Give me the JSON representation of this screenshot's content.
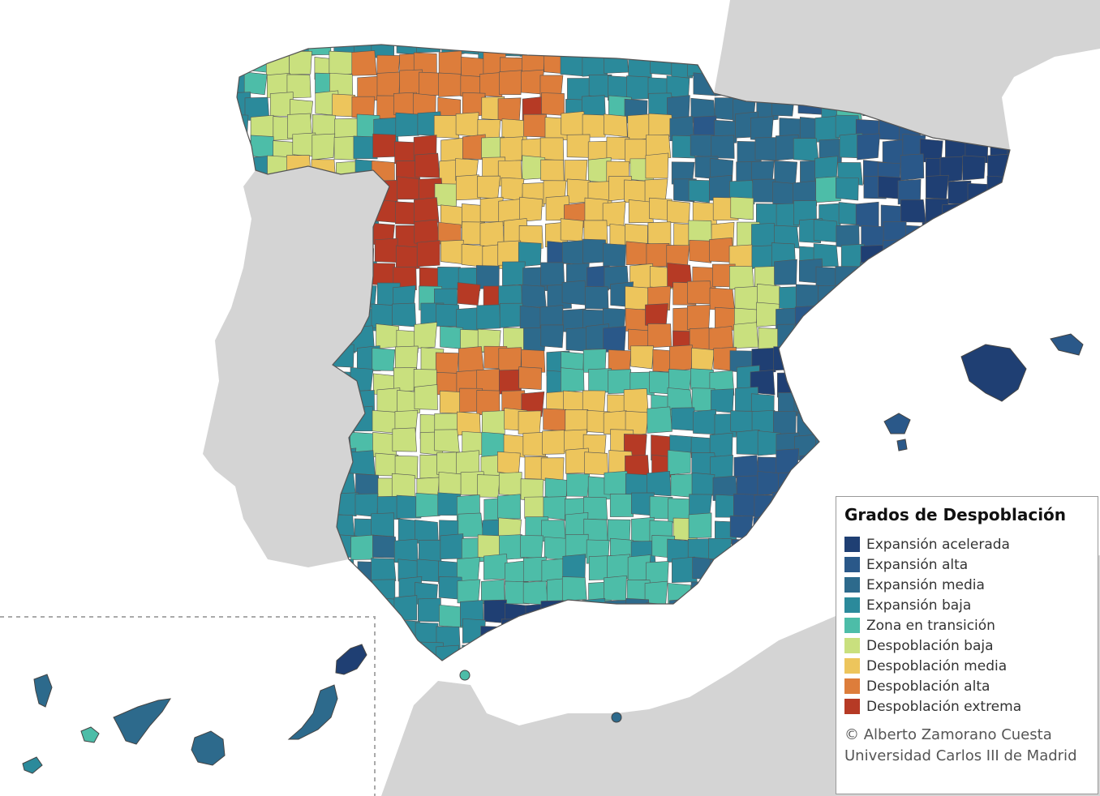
{
  "legend": {
    "title": "Grados de Despoblación",
    "items": [
      {
        "label": "Expansión acelerada",
        "color": "#1f3f73"
      },
      {
        "label": "Expansión alta",
        "color": "#2a5889"
      },
      {
        "label": "Expansión media",
        "color": "#2d6a8c"
      },
      {
        "label": "Expansión baja",
        "color": "#2b8a9b"
      },
      {
        "label": "Zona en transición",
        "color": "#4dbda8"
      },
      {
        "label": "Despoblación baja",
        "color": "#c9e07e"
      },
      {
        "label": "Despoblación media",
        "color": "#edc55c"
      },
      {
        "label": "Despoblación alta",
        "color": "#dd7d3b"
      },
      {
        "label": "Despoblación extrema",
        "color": "#b63a25"
      }
    ]
  },
  "credits": {
    "line1": "© Alberto Zamorano Cuesta",
    "line2": "Universidad Carlos III de Madrid"
  },
  "colors": {
    "sea": "#ffffff",
    "neighbor_land": "#d4d4d4",
    "region_border": "#555555"
  }
}
